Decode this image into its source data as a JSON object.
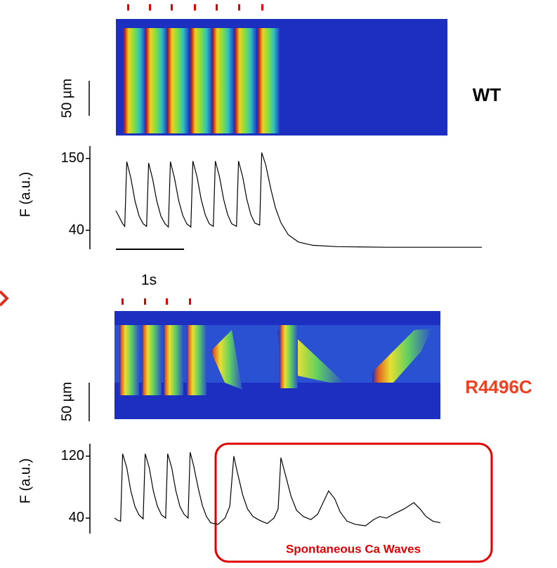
{
  "chart_data": [
    {
      "type": "line",
      "title": "WT",
      "y_label": "F (a.u.)",
      "scale_label": "50 µm",
      "time_scale_label": "1s",
      "color": "#000000",
      "x": [
        0,
        0.05,
        0.1,
        0.13,
        0.16,
        0.22,
        0.28,
        0.34,
        0.4,
        0.45,
        0.48,
        0.54,
        0.6,
        0.66,
        0.72,
        0.77,
        0.8,
        0.86,
        0.92,
        0.98,
        1.04,
        1.1,
        1.13,
        1.19,
        1.25,
        1.31,
        1.37,
        1.43,
        1.46,
        1.52,
        1.58,
        1.64,
        1.7,
        1.77,
        1.8,
        1.86,
        1.92,
        1.98,
        2.04,
        2.11,
        2.14,
        2.2,
        2.27,
        2.34,
        2.42,
        2.53,
        2.68,
        2.89,
        3.25,
        3.97,
        4.69,
        5.37
      ],
      "values": [
        70,
        60,
        50,
        46,
        145,
        120,
        85,
        62,
        50,
        46,
        143,
        118,
        85,
        62,
        50,
        45,
        145,
        120,
        86,
        63,
        50,
        45,
        146,
        122,
        88,
        64,
        50,
        46,
        146,
        122,
        88,
        64,
        50,
        46,
        146,
        122,
        88,
        64,
        51,
        48,
        159,
        140,
        105,
        75,
        52,
        33,
        22,
        17,
        15,
        14,
        14,
        14
      ],
      "xlim": [
        0,
        5.37
      ],
      "ylim": [
        11,
        169
      ],
      "yticks": [
        40,
        150
      ]
    },
    {
      "type": "line",
      "title": "R4496C",
      "y_label": "F (a.u.)",
      "scale_label": "50 µm",
      "annotation": "Spontaneous Ca Waves",
      "color": "#000000",
      "x": [
        0,
        0.05,
        0.09,
        0.12,
        0.18,
        0.24,
        0.3,
        0.36,
        0.42,
        0.45,
        0.51,
        0.57,
        0.63,
        0.69,
        0.75,
        0.78,
        0.84,
        0.9,
        0.96,
        1.02,
        1.08,
        1.11,
        1.16,
        1.23,
        1.29,
        1.35,
        1.41,
        1.52,
        1.62,
        1.69,
        1.75,
        1.8,
        1.88,
        1.95,
        2.03,
        2.13,
        2.24,
        2.34,
        2.4,
        2.44,
        2.51,
        2.59,
        2.67,
        2.77,
        2.88,
        2.98,
        3.06,
        3.14,
        3.23,
        3.31,
        3.41,
        3.53,
        3.68,
        3.8,
        3.89,
        3.99,
        4.09,
        4.25,
        4.39,
        4.48,
        4.57,
        4.67,
        4.78
      ],
      "values": [
        40,
        37,
        36,
        123,
        105,
        75,
        55,
        44,
        39,
        123,
        105,
        75,
        55,
        44,
        40,
        123,
        105,
        75,
        55,
        45,
        40,
        125,
        108,
        78,
        56,
        42,
        34,
        32,
        40,
        55,
        120,
        100,
        70,
        52,
        42,
        37,
        33,
        40,
        52,
        118,
        95,
        68,
        50,
        42,
        38,
        45,
        60,
        75,
        65,
        48,
        36,
        32,
        30,
        38,
        42,
        40,
        45,
        52,
        60,
        52,
        42,
        36,
        34
      ],
      "xlim": [
        0,
        4.78
      ],
      "ylim": [
        20,
        136
      ],
      "yticks": [
        40,
        120
      ]
    }
  ]
}
